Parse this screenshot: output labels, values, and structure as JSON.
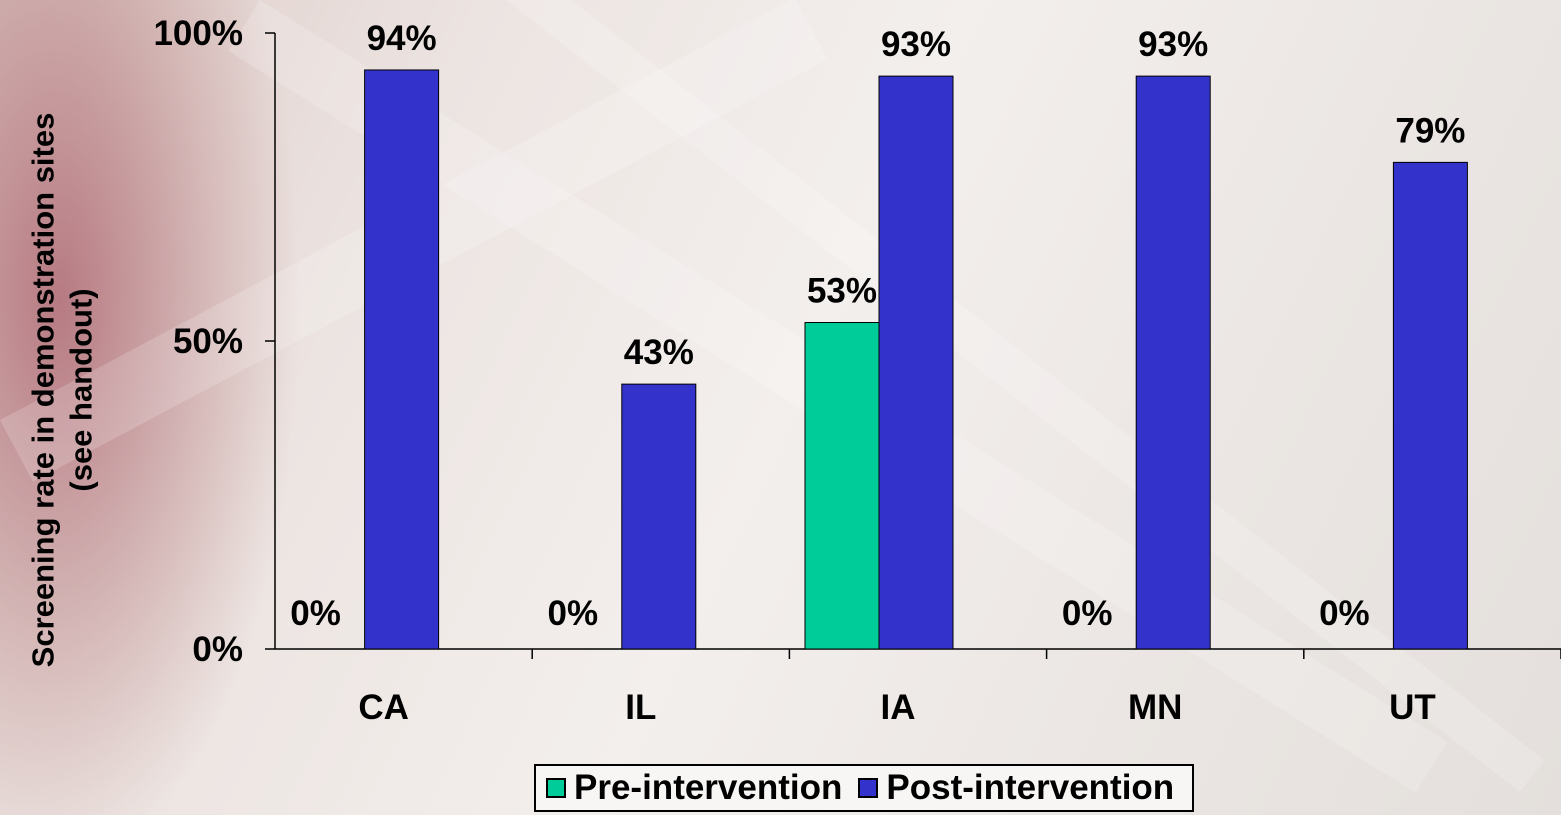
{
  "chart_data": {
    "type": "bar",
    "ylabel": [
      "Screening rate in demonstration sites",
      "(see handout)"
    ],
    "xlabel": "",
    "categories": [
      "CA",
      "IL",
      "IA",
      "MN",
      "UT"
    ],
    "ylim": [
      0,
      100
    ],
    "yticks": [
      {
        "value": 0,
        "label": "0%"
      },
      {
        "value": 50,
        "label": "50%"
      },
      {
        "value": 100,
        "label": "100%"
      }
    ],
    "series": [
      {
        "name": "Pre-intervention",
        "color": "#00cc99",
        "values": [
          0,
          0,
          53,
          0,
          0
        ],
        "labels": [
          "0%",
          "0%",
          "53%",
          "0%",
          "0%"
        ]
      },
      {
        "name": "Post-intervention",
        "color": "#3333cc",
        "values": [
          94,
          43,
          93,
          93,
          79
        ],
        "labels": [
          "94%",
          "43%",
          "93%",
          "93%",
          "79%"
        ]
      }
    ],
    "legend": "bottom-center",
    "grid": false
  }
}
